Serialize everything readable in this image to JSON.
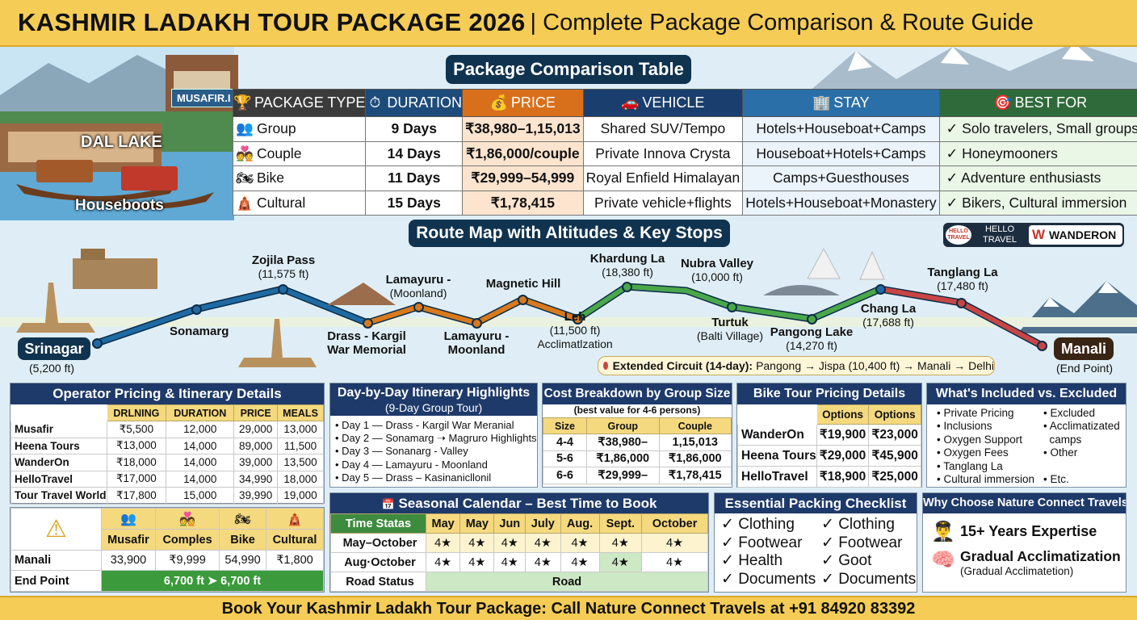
{
  "banner": {
    "title": "KASHMIR LADAKH TOUR PACKAGE 2026",
    "subtitle": "| Complete Package Comparison & Route Guide"
  },
  "left_photo": {
    "sign": "MUSAFIR.I",
    "dal_lake": "DAL LAKE",
    "houseboats": "Houseboots"
  },
  "package_table": {
    "title": "Package Comparison Table",
    "headers": [
      "PACKAGE TYPE",
      "DURATION",
      "PRICE",
      "VEHICLE",
      "STAY",
      "BEST FOR"
    ],
    "header_icons": [
      "trophy-icon",
      "stopwatch-icon",
      "money-bag-icon",
      "car-icon",
      "building-icon",
      "target-icon"
    ],
    "rows": [
      {
        "type": "Group",
        "icon": "group-icon",
        "duration": "9 Days",
        "price": "₹38,980–1,15,013",
        "vehicle": "Shared SUV/Tempo",
        "stay": "Hotels+Houseboat+Camps",
        "best": "✓ Solo travelers, Small groups"
      },
      {
        "type": "Couple",
        "icon": "couple-icon",
        "duration": "14 Days",
        "price": "₹1,86,000/couple",
        "vehicle": "Private Innova Crysta",
        "stay": "Houseboat+Hotels+Camps",
        "best": "✓ Honeymooners"
      },
      {
        "type": "Bike",
        "icon": "motorbike-icon",
        "duration": "11 Days",
        "price": "₹29,999–54,999",
        "vehicle": "Royal Enfield Himalayan",
        "stay": "Camps+Guesthouses",
        "best": "✓ Adventure enthusiasts"
      },
      {
        "type": "Cultural",
        "icon": "temple-icon",
        "duration": "15 Days",
        "price": "₹1,78,415",
        "vehicle": "Private vehicle+flights",
        "stay": "Hotels+Houseboat+Monastery",
        "best": "✓ Bikers, Cultural immersion"
      }
    ]
  },
  "route_map": {
    "title": "Route Map with Altitudes & Key Stops",
    "partners": {
      "hello_badge": "HELLO TRAVEL",
      "hello_name": "HELLO\nTRAVEL",
      "wanderon_mark": "W",
      "wanderon_name": "WANDERON"
    },
    "stops": [
      {
        "name": "Srinagar",
        "sub": "(5,200 ft)"
      },
      {
        "name": "Sonamarg",
        "sub": ""
      },
      {
        "name": "Zojila Pass",
        "sub": "(11,575 ft)"
      },
      {
        "name": "Drass - Kargil War Memorial",
        "sub": ""
      },
      {
        "name": "Lamayuru -",
        "sub": "(Moonland)"
      },
      {
        "name": "Lamayuru - Moonland",
        "sub": ""
      },
      {
        "name": "Magnetic Hill",
        "sub": ""
      },
      {
        "name": "Leh",
        "sub": "(11,500 ft)",
        "note": "Acclimatlzation"
      },
      {
        "name": "Khardung La",
        "sub": "(18,380 ft)"
      },
      {
        "name": "Nubra Valley",
        "sub": "(10,000 ft)"
      },
      {
        "name": "Turtuk",
        "sub": "(Balti Village)"
      },
      {
        "name": "Pangong Lake",
        "sub": "(14,270 ft)"
      },
      {
        "name": "Chang La",
        "sub": "(17,688 ft)"
      },
      {
        "name": "Tanglang La",
        "sub": "(17,480 ft)"
      },
      {
        "name": "Manali",
        "sub": "(End Point)"
      }
    ],
    "extended_label": "Extended Circuit (14-day):",
    "extended_route": "Pangong → Jispa (10,400 ft) → Manali → Delhi"
  },
  "operator_table": {
    "title": "Operator Pricing & Itinerary Details",
    "headers": [
      "",
      "DRLNING",
      "DURATION",
      "PRICE",
      "MEALS"
    ],
    "rows": [
      [
        "Musafir",
        "₹5,500",
        "12,000",
        "29,000",
        "13,000"
      ],
      [
        "Heena Tours",
        "₹13,000",
        "14,000",
        "89,000",
        "11,500"
      ],
      [
        "WanderOn",
        "₹18,000",
        "14,000",
        "39,000",
        "13,500"
      ],
      [
        "HelloTravel",
        "₹17,000",
        "14,000",
        "34,990",
        "18,000"
      ],
      [
        "Tour Travel World",
        "₹17,800",
        "15,000",
        "39,990",
        "19,000"
      ]
    ]
  },
  "warning_table": {
    "headers": [
      "Musafir",
      "Comples",
      "Bike",
      "Cultural"
    ],
    "header_icons": [
      "group-icon",
      "couple-icon",
      "motorbike-icon",
      "temple-icon"
    ],
    "rows": [
      {
        "label": "Manali",
        "values": [
          "33,900",
          "₹9,999",
          "54,990",
          "₹1,800"
        ]
      },
      {
        "label": "End Point",
        "span": "6,700 ft ➤ 6,700 ft"
      }
    ]
  },
  "itinerary": {
    "title": "Day-by-Day Itinerary Highlights",
    "subtitle": "(9-Day Group Tour)",
    "items": [
      "Day 1 — Drass - Kargil War Meranial",
      "Day 2 — Sonamarg ➝ Magruro Highlights",
      "Day 3 — Sonanarg - Valley",
      "Day 4 — Lamayuru - Moonland",
      "Day 5 — Drass – Kasinanicllonil"
    ]
  },
  "cost_breakdown": {
    "title": "Cost Breakdown by Group Size",
    "subtitle": "(best value for 4-6 persons)",
    "headers": [
      "Size",
      "Group",
      "Couple"
    ],
    "rows": [
      [
        "4-4",
        "₹38,980–",
        "1,15,013"
      ],
      [
        "5-6",
        "₹1,86,000",
        "₹1,86,000"
      ],
      [
        "6-6",
        "₹29,999–",
        "₹1,78,415"
      ]
    ]
  },
  "bike_pricing": {
    "title": "Bike Tour Pricing Details",
    "headers": [
      "",
      "Options",
      "Options"
    ],
    "rows": [
      [
        "WanderOn",
        "₹19,900",
        "₹23,000"
      ],
      [
        "Heena Tours",
        "₹29,000",
        "₹45,900"
      ],
      [
        "HelloTravel",
        "₹18,900",
        "₹25,000"
      ]
    ]
  },
  "included": {
    "title": "What's Included vs. Excluded",
    "included": [
      "Private Pricing",
      "Inclusions",
      "Oxygen Support",
      "Oxygen Fees",
      "Tanglang La",
      "Cultural immersion"
    ],
    "excluded": [
      "Excluded",
      "Acclimatizated",
      "camps",
      "Other",
      "",
      "Etc."
    ]
  },
  "seasonal": {
    "title": "Seasonal Calendar – Best Time to Book",
    "headers": [
      "Time Statas",
      "May",
      "May",
      "Jun",
      "July",
      "Aug.",
      "Sept.",
      "October"
    ],
    "rows": [
      {
        "label": "May–October",
        "values": [
          "4★",
          "4★",
          "4★",
          "4★",
          "4★",
          "4★",
          "4★"
        ]
      },
      {
        "label": "Aug·October",
        "values": [
          "4★",
          "4★",
          "4★",
          "4★",
          "4★",
          "4★",
          "4★"
        ]
      }
    ],
    "road_label": "Road Status",
    "road_value": "Road"
  },
  "packing": {
    "title": "Essential Packing Checklist",
    "col1": [
      "✓ Clothing",
      "✓ Footwear",
      "✓ Health",
      "✓ Documents"
    ],
    "col2": [
      "✓ Clothing",
      "✓ Footwear",
      "✓ Goot",
      "✓ Documents"
    ]
  },
  "why": {
    "title": "Why Choose Nature Connect Travels",
    "point1": "15+ Years Expertise",
    "point2": "Gradual Acclimatization",
    "point2_sub": "(Gradual Acclimatetion)"
  },
  "footer": "Book Your Kashmir Ladakh Tour Package: Call Nature Connect Travels at +91 84920 83392",
  "colors": {
    "banner": "#f5cc55",
    "navy": "#10334f",
    "route_blue": "#1f6aa3",
    "route_orange": "#d97a1c",
    "route_green": "#4aa84a",
    "route_red": "#c94545"
  }
}
